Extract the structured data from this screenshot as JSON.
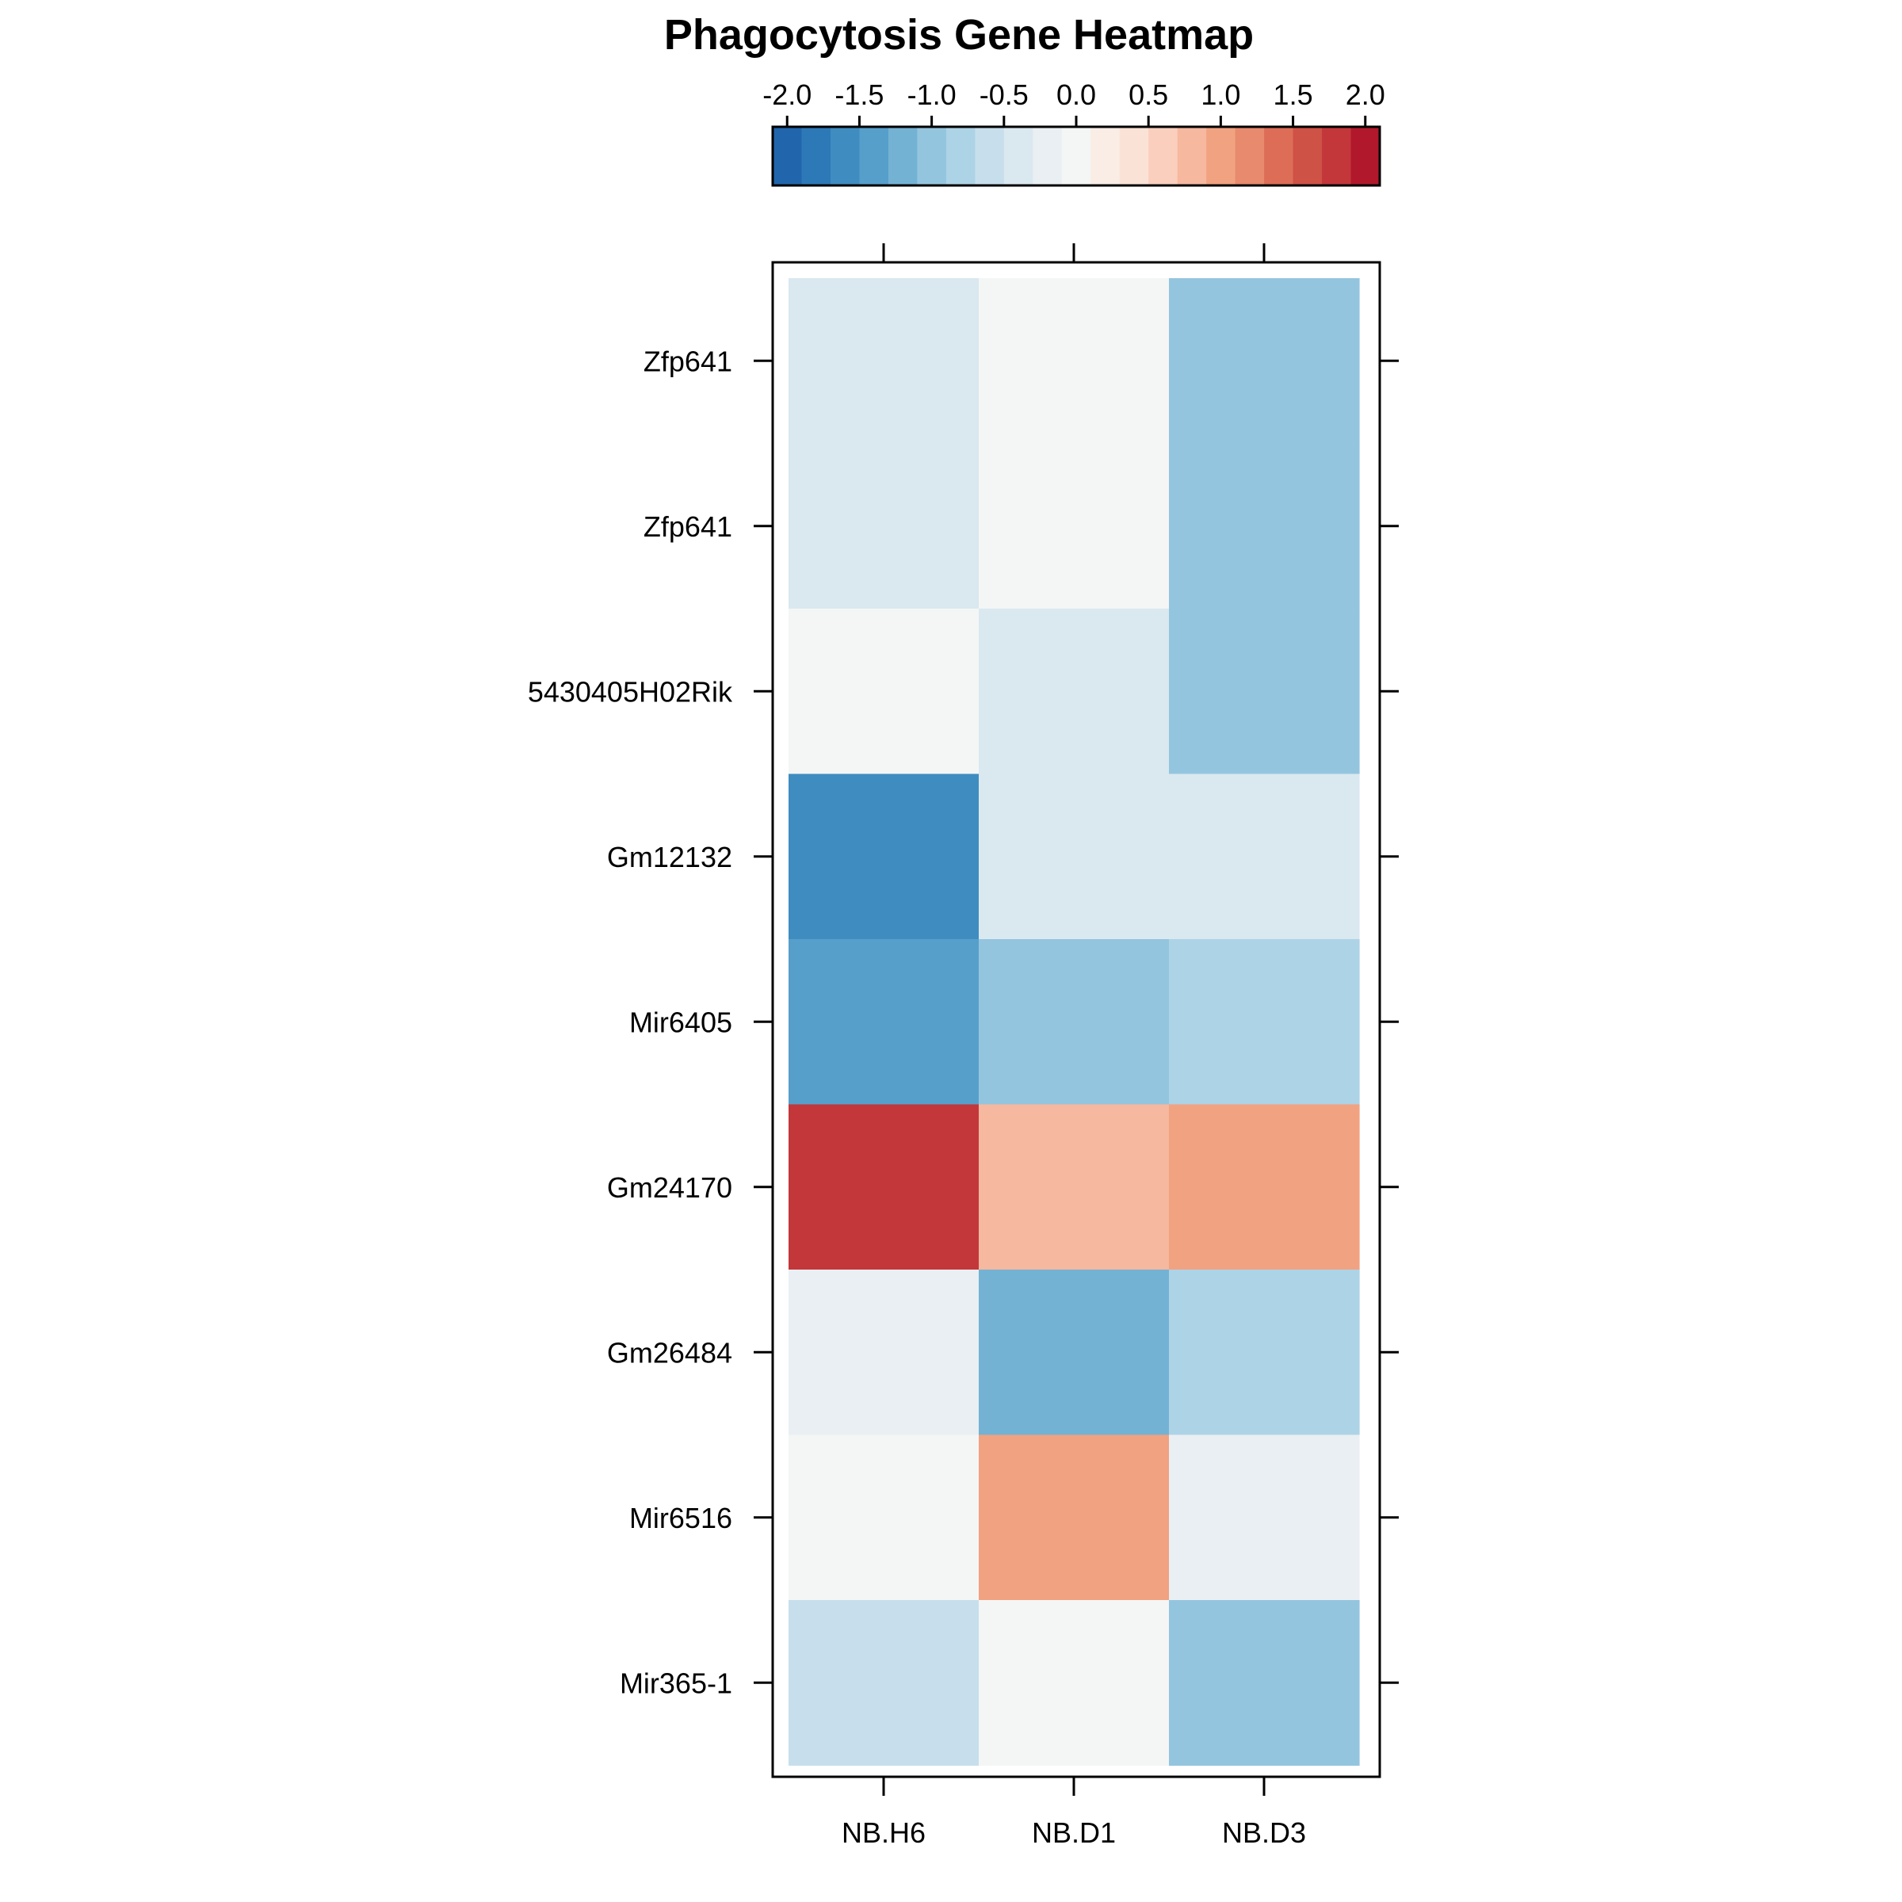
{
  "chart_data": {
    "type": "heatmap",
    "title": "Phagocytosis Gene Heatmap",
    "columns": [
      "NB.H6",
      "NB.D1",
      "NB.D3"
    ],
    "rows": [
      "Zfp641",
      "Zfp641",
      "5430405H02Rik",
      "Gm12132",
      "Mir6405",
      "Gm24170",
      "Gm26484",
      "Mir6516",
      "Mir365-1"
    ],
    "values": [
      [
        -0.4,
        -0.1,
        -1.0
      ],
      [
        -0.4,
        -0.1,
        -1.0
      ],
      [
        -0.1,
        -0.4,
        -1.0
      ],
      [
        -1.6,
        -0.5,
        -0.5
      ],
      [
        -1.4,
        -1.0,
        -0.8
      ],
      [
        1.8,
        0.8,
        1.0
      ],
      [
        -0.2,
        -1.2,
        -0.8
      ],
      [
        -0.1,
        1.0,
        -0.2
      ],
      [
        -0.7,
        -0.1,
        -1.0
      ]
    ],
    "colorbar": {
      "ticks": [
        "-2.0",
        "-1.5",
        "-1.0",
        "-0.5",
        "0.0",
        "0.5",
        "1.0",
        "1.5",
        "2.0"
      ],
      "range": [
        -2.1,
        2.1
      ],
      "colors": [
        "#2166AC",
        "#2D79B7",
        "#3F8CC1",
        "#569FCB",
        "#74B2D4",
        "#94C5DF",
        "#ADD3E6",
        "#C7DFEC",
        "#DAE8F0",
        "#E9EFF2",
        "#F4F6F5",
        "#F9EDE6",
        "#FBE2D6",
        "#FACFBD",
        "#F6B89F",
        "#F1A281",
        "#E88A6D",
        "#DD6D57",
        "#CF5246",
        "#C3373A",
        "#B2182B"
      ]
    }
  }
}
